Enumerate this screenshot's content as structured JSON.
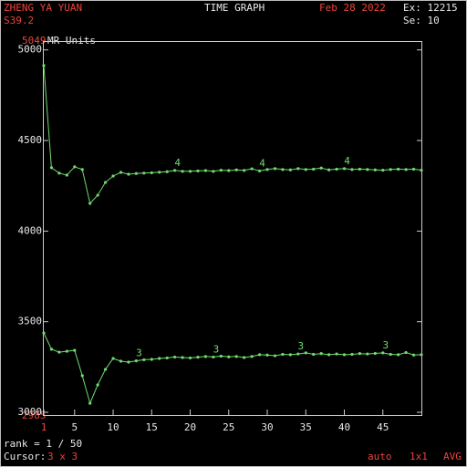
{
  "chart_data": {
    "type": "line",
    "patient": "ZHENG YA YUAN",
    "title": "TIME GRAPH",
    "date": "Feb 28 2022",
    "exam": "Ex: 12215",
    "slice": "S39.2",
    "series_number": "Se: 10",
    "ylabel": "MR Units",
    "rank": "rank =  1 / 50",
    "cursor_label": "Cursor:",
    "cursor_size": "3 x 3",
    "mode": "auto",
    "zoom": "1x1",
    "method": "AVG",
    "x": [
      1,
      2,
      3,
      4,
      5,
      6,
      7,
      8,
      9,
      10,
      11,
      12,
      13,
      14,
      15,
      16,
      17,
      18,
      19,
      20,
      21,
      22,
      23,
      24,
      25,
      26,
      27,
      28,
      29,
      30,
      31,
      32,
      33,
      34,
      35,
      36,
      37,
      38,
      39,
      40,
      41,
      42,
      43,
      44,
      45,
      46,
      47,
      48,
      49,
      50
    ],
    "xlim": [
      1,
      50
    ],
    "xticks": [
      1,
      5,
      10,
      15,
      20,
      25,
      30,
      35,
      40,
      45
    ],
    "ylim": [
      2985,
      5049
    ],
    "yticks": [
      3000,
      3500,
      4000,
      4500,
      5000
    ],
    "series": [
      {
        "name": "4",
        "color": "#6fdc6f",
        "values": [
          4914,
          4350,
          4320,
          4309,
          4355,
          4340,
          4153,
          4198,
          4269,
          4304,
          4324,
          4314,
          4318,
          4320,
          4322,
          4325,
          4328,
          4335,
          4330,
          4330,
          4332,
          4334,
          4330,
          4336,
          4334,
          4338,
          4335,
          4344,
          4332,
          4340,
          4345,
          4340,
          4338,
          4345,
          4340,
          4342,
          4348,
          4338,
          4342,
          4345,
          4340,
          4342,
          4340,
          4338,
          4336,
          4340,
          4342,
          4340,
          4342,
          4336
        ]
      },
      {
        "name": "3",
        "color": "#6fdc6f",
        "values": [
          3438,
          3348,
          3332,
          3337,
          3342,
          3202,
          3050,
          3151,
          3237,
          3297,
          3282,
          3277,
          3284,
          3290,
          3292,
          3297,
          3300,
          3305,
          3302,
          3300,
          3304,
          3308,
          3305,
          3310,
          3306,
          3308,
          3302,
          3308,
          3318,
          3316,
          3312,
          3320,
          3318,
          3322,
          3328,
          3320,
          3324,
          3318,
          3322,
          3318,
          3320,
          3324,
          3322,
          3325,
          3328,
          3320,
          3318,
          3330,
          3316,
          3318
        ]
      }
    ]
  }
}
